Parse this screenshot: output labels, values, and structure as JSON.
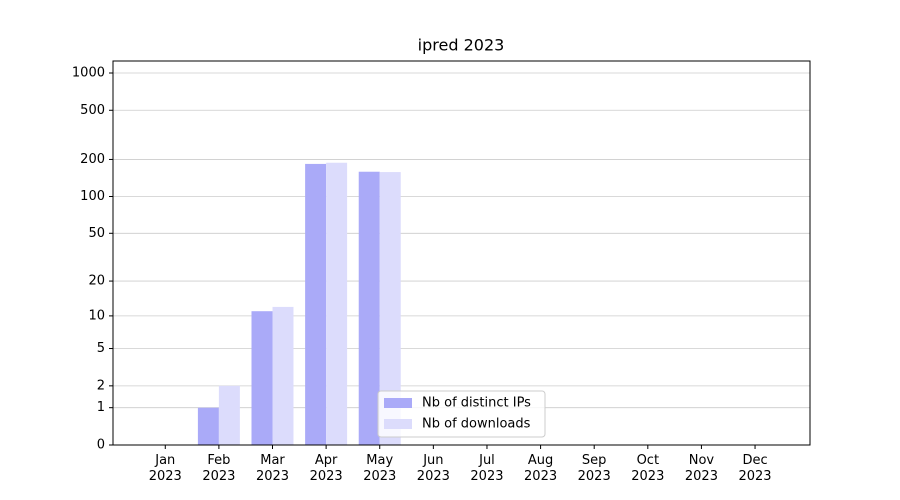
{
  "chart_data": {
    "type": "bar",
    "title": "ipred 2023",
    "categories": [
      "Jan\n2023",
      "Feb\n2023",
      "Mar\n2023",
      "Apr\n2023",
      "May\n2023",
      "Jun\n2023",
      "Jul\n2023",
      "Aug\n2023",
      "Sep\n2023",
      "Oct\n2023",
      "Nov\n2023",
      "Dec\n2023"
    ],
    "series": [
      {
        "name": "Nb of distinct IPs",
        "color": "#aaaaf8",
        "values": [
          0,
          1,
          11,
          184,
          159,
          0,
          0,
          0,
          0,
          0,
          0,
          0
        ]
      },
      {
        "name": "Nb of downloads",
        "color": "#dcdcfc",
        "values": [
          0,
          2,
          12,
          188,
          158,
          0,
          0,
          0,
          0,
          0,
          0,
          0
        ]
      }
    ],
    "y_scale": "log1p",
    "ylim": [
      0,
      1250
    ],
    "yticks": [
      0,
      1,
      2,
      5,
      10,
      20,
      50,
      100,
      200,
      500,
      1000
    ],
    "grid": true,
    "legend": "lower center"
  }
}
